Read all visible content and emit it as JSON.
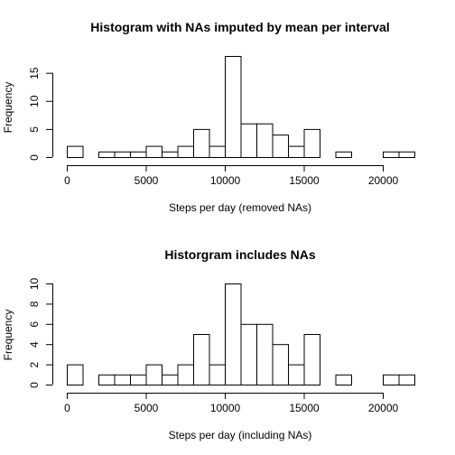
{
  "chart_data": [
    {
      "type": "bar",
      "title": "Histogram with NAs imputed by mean per interval",
      "xlabel": "Steps per day (removed NAs)",
      "ylabel": "Frequency",
      "bin_width": 1000,
      "bin_starts": [
        0,
        1000,
        2000,
        3000,
        4000,
        5000,
        6000,
        7000,
        8000,
        9000,
        10000,
        11000,
        12000,
        13000,
        14000,
        15000,
        16000,
        17000,
        18000,
        19000,
        20000,
        21000
      ],
      "values": [
        2,
        0,
        1,
        1,
        1,
        2,
        1,
        2,
        5,
        2,
        18,
        6,
        6,
        4,
        2,
        5,
        0,
        1,
        0,
        0,
        1,
        1
      ],
      "x_ticks": [
        0,
        5000,
        10000,
        15000,
        20000
      ],
      "y_ticks": [
        0,
        5,
        10,
        15
      ],
      "xlim": [
        0,
        22000
      ],
      "ylim": [
        0,
        18
      ],
      "grid": false
    },
    {
      "type": "bar",
      "title": "Historgram includes NAs",
      "xlabel": "Steps per day (including NAs)",
      "ylabel": "Frequency",
      "bin_width": 1000,
      "bin_starts": [
        0,
        1000,
        2000,
        3000,
        4000,
        5000,
        6000,
        7000,
        8000,
        9000,
        10000,
        11000,
        12000,
        13000,
        14000,
        15000,
        16000,
        17000,
        18000,
        19000,
        20000,
        21000
      ],
      "values": [
        2,
        0,
        1,
        1,
        1,
        2,
        1,
        2,
        5,
        2,
        10,
        6,
        6,
        4,
        2,
        5,
        0,
        1,
        0,
        0,
        1,
        1
      ],
      "x_ticks": [
        0,
        5000,
        10000,
        15000,
        20000
      ],
      "y_ticks": [
        0,
        2,
        4,
        6,
        8,
        10
      ],
      "xlim": [
        0,
        22000
      ],
      "ylim": [
        0,
        10
      ],
      "grid": false
    }
  ]
}
